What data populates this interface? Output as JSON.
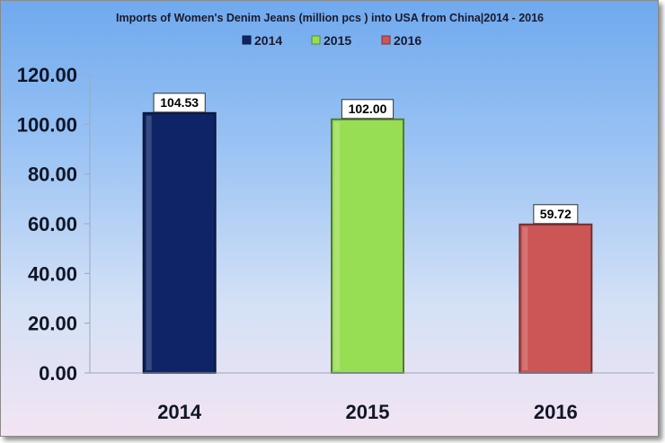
{
  "chart_data": {
    "type": "bar",
    "title": "Imports of Women's Denim Jeans (million pcs ) into USA from China|2014 - 2016",
    "categories": [
      "2014",
      "2015",
      "2016"
    ],
    "values": [
      104.53,
      102.0,
      59.72
    ],
    "value_labels": [
      "104.53",
      "102.00",
      "59.72"
    ],
    "legend": [
      "2014",
      "2015",
      "2016"
    ],
    "legend_position": "top",
    "bar_colors": [
      "#0e2466",
      "#98de54",
      "#cc5555"
    ],
    "ylim": [
      0,
      120
    ],
    "yticks": [
      "0.00",
      "20.00",
      "40.00",
      "60.00",
      "80.00",
      "100.00",
      "120.00"
    ],
    "ytick_values": [
      0,
      20,
      40,
      60,
      80,
      100,
      120
    ],
    "grid": false,
    "xlabel": "",
    "ylabel": ""
  }
}
